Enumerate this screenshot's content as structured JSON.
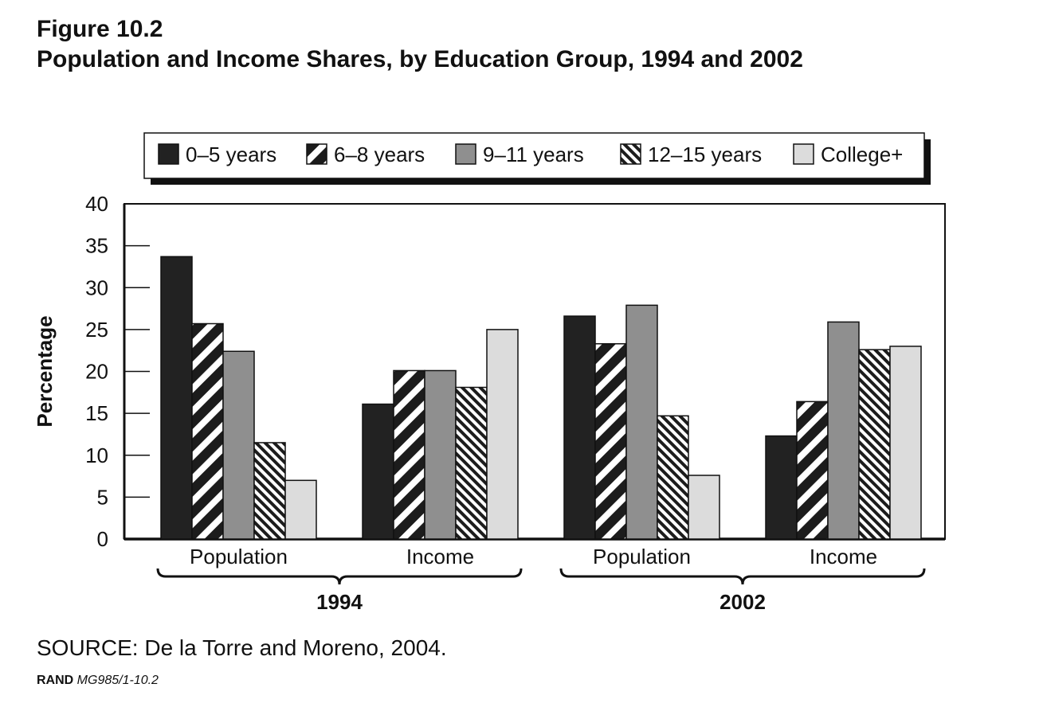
{
  "figure": {
    "label": "Figure 10.2",
    "title": "Population and Income Shares, by Education Group, 1994 and 2002",
    "source": "SOURCE: De la Torre and Moreno, 2004.",
    "credit_org": "RAND",
    "credit_id": "MG985/1-10.2"
  },
  "chart_data": {
    "type": "bar",
    "title": "Population and Income Shares, by Education Group, 1994 and 2002",
    "ylabel": "Percentage",
    "ylim": [
      0,
      40
    ],
    "yticks": [
      0,
      5,
      10,
      15,
      20,
      25,
      30,
      35,
      40
    ],
    "grid": false,
    "legend_position": "top",
    "categories": [
      "Population",
      "Income",
      "Population",
      "Income"
    ],
    "category_groups": [
      {
        "label": "1994",
        "categories": [
          0,
          1
        ]
      },
      {
        "label": "2002",
        "categories": [
          2,
          3
        ]
      }
    ],
    "series": [
      {
        "name": "0–5 years",
        "pattern": "solid-black",
        "color": "#222222",
        "values": [
          33.7,
          16.1,
          26.6,
          12.3
        ]
      },
      {
        "name": "6–8 years",
        "pattern": "black-diagonal-stripes",
        "color": "#222222",
        "values": [
          25.7,
          20.1,
          23.3,
          16.4
        ]
      },
      {
        "name": "9–11 years",
        "pattern": "solid-gray",
        "color": "#8f8f8f",
        "values": [
          22.4,
          20.1,
          27.9,
          25.9
        ]
      },
      {
        "name": "12–15 years",
        "pattern": "fine-diagonal-stripes",
        "color": "#222222",
        "values": [
          11.5,
          18.1,
          14.7,
          22.6
        ]
      },
      {
        "name": "College+",
        "pattern": "solid-light-gray",
        "color": "#dcdcdc",
        "values": [
          7.0,
          25.0,
          7.6,
          23.0
        ]
      }
    ]
  }
}
